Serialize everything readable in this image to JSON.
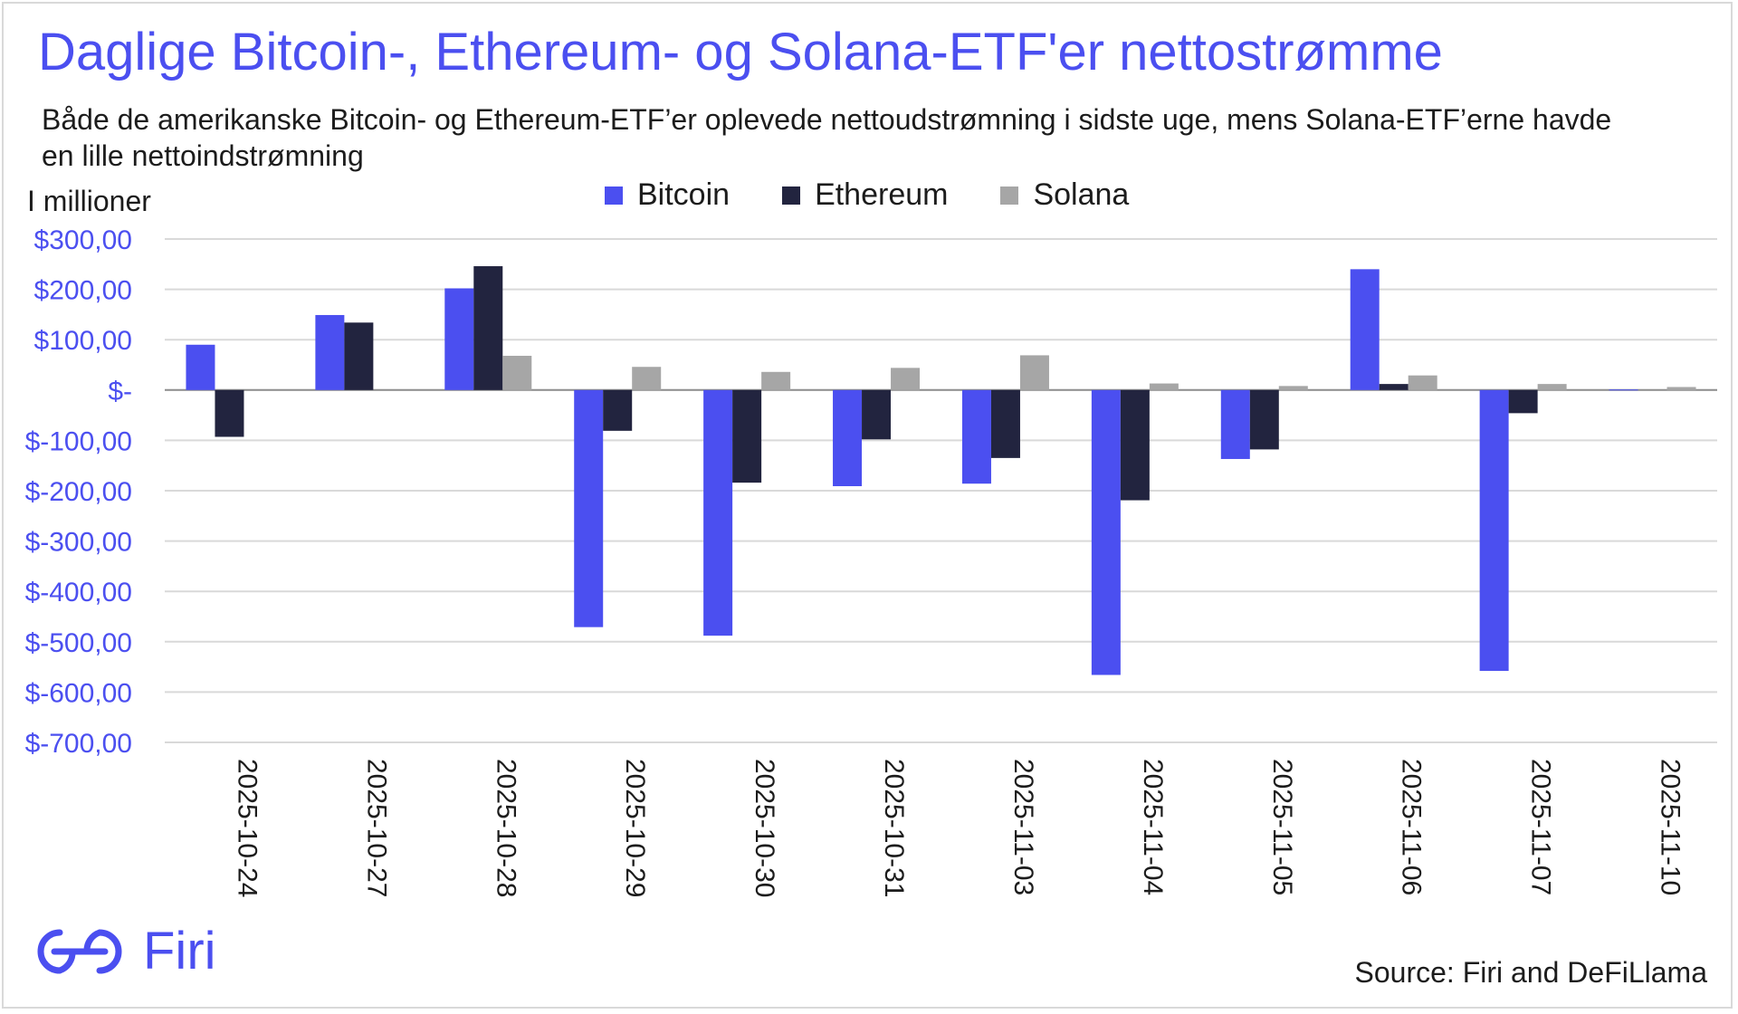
{
  "header": {
    "title": "Daglige Bitcoin-, Ethereum- og Solana-ETF'er nettostrømme",
    "subtitle": "Både de amerikanske Bitcoin- og Ethereum-ETF’er oplevede nettoudstrømning i sidste uge, mens Solana-ETF’erne havde en lille nettoindstrømning",
    "unit_label": "I millioner"
  },
  "footer": {
    "brand": "Firi",
    "source": "Source: Firi and DeFiLlama"
  },
  "colors": {
    "accent": "#4b4ff0",
    "bitcoin": "#4b4ff0",
    "ethereum": "#22243f",
    "solana": "#a6a6a6",
    "grid": "#d9d9d9"
  },
  "chart_data": {
    "type": "bar",
    "title": "Daglige Bitcoin-, Ethereum- og Solana-ETF'er nettostrømme",
    "subtitle": "Både de amerikanske Bitcoin- og Ethereum-ETF’er oplevede nettoudstrømning i sidste uge, mens Solana-ETF’erne havde en lille nettoindstrømning",
    "ylabel": "I millioner",
    "xlabel": "",
    "ylim": [
      -700,
      300
    ],
    "yticks": [
      300,
      200,
      100,
      0,
      -100,
      -200,
      -300,
      -400,
      -500,
      -600,
      -700
    ],
    "ytick_labels": [
      "$300,00",
      "$200,00",
      "$100,00",
      "$-",
      "$-100,00",
      "$-200,00",
      "$-300,00",
      "$-400,00",
      "$-500,00",
      "$-600,00",
      "$-700,00"
    ],
    "grid": true,
    "legend_position": "top-center",
    "categories": [
      "2025-10-24",
      "2025-10-27",
      "2025-10-28",
      "2025-10-29",
      "2025-10-30",
      "2025-10-31",
      "2025-11-03",
      "2025-11-04",
      "2025-11-05",
      "2025-11-06",
      "2025-11-07",
      "2025-11-10"
    ],
    "series": [
      {
        "name": "Bitcoin",
        "color": "#4b4ff0",
        "values": [
          90,
          149,
          202,
          -471,
          -488,
          -191,
          -186,
          -566,
          -137,
          240,
          -558,
          1
        ]
      },
      {
        "name": "Ethereum",
        "color": "#22243f",
        "values": [
          -93,
          134,
          246,
          -81,
          -184,
          -98,
          -135,
          -219,
          -118,
          12,
          -46,
          0
        ]
      },
      {
        "name": "Solana",
        "color": "#a6a6a6",
        "values": [
          0,
          0,
          68,
          46,
          36,
          44,
          69,
          13,
          8,
          29,
          12,
          6
        ]
      }
    ]
  }
}
